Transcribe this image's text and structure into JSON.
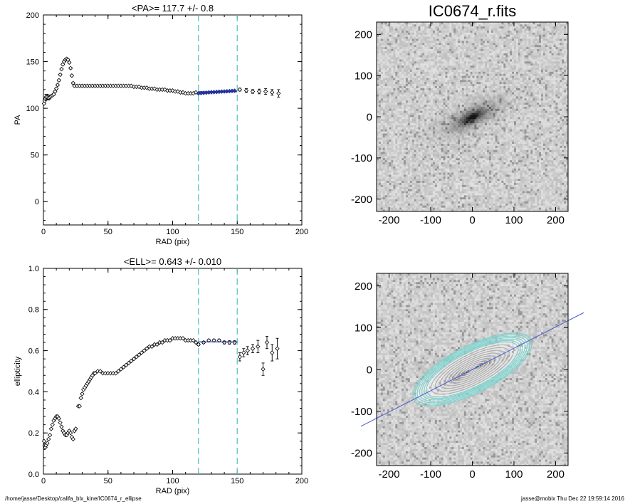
{
  "footer": {
    "path": "/home/jasse/Desktop/califa_blx_kine/IC0674_r_ellipse",
    "stamp": "jasse@mobix  Thu Dec 22 19:59:14 2016"
  },
  "chart_data": [
    {
      "id": "pa",
      "type": "scatter",
      "title": "<PA>= 117.7 +/-   0.8",
      "xlabel": "RAD (pix)",
      "ylabel": "PA",
      "xlim": [
        0,
        200
      ],
      "ylim": [
        -25,
        200
      ],
      "xticks": [
        0,
        50,
        100,
        150,
        200
      ],
      "yticks": [
        0,
        50,
        100,
        150,
        200
      ],
      "vlines": [
        120,
        150
      ],
      "fit_range": [
        120,
        150
      ],
      "fit_value": 117.7,
      "fit_error": 0.8,
      "grid": false,
      "series": [
        {
          "points": [
            [
              0.5,
              105
            ],
            [
              1,
              108
            ],
            [
              1.5,
              110
            ],
            [
              2,
              112
            ],
            [
              3,
              112
            ],
            [
              4,
              111
            ],
            [
              5,
              112
            ],
            [
              6,
              113
            ],
            [
              7,
              114
            ],
            [
              8,
              115
            ],
            [
              9,
              118
            ],
            [
              10,
              121
            ],
            [
              11,
              125
            ],
            [
              12,
              130
            ],
            [
              13,
              136
            ],
            [
              14,
              142
            ],
            [
              15,
              147
            ],
            [
              16,
              150
            ],
            [
              17,
              152
            ],
            [
              18,
              153
            ],
            [
              19,
              152
            ],
            [
              20,
              149
            ],
            [
              21,
              143
            ],
            [
              22,
              135
            ],
            [
              23,
              127
            ],
            [
              24,
              124
            ],
            [
              26,
              124
            ],
            [
              28,
              124
            ],
            [
              30,
              124
            ],
            [
              32,
              124
            ],
            [
              34,
              124
            ],
            [
              36,
              124
            ],
            [
              38,
              124
            ],
            [
              40,
              124
            ],
            [
              42,
              124
            ],
            [
              44,
              124
            ],
            [
              46,
              124
            ],
            [
              48,
              124
            ],
            [
              50,
              124
            ],
            [
              52,
              124
            ],
            [
              54,
              124
            ],
            [
              56,
              124
            ],
            [
              58,
              124
            ],
            [
              60,
              124
            ],
            [
              62,
              124
            ],
            [
              64,
              124
            ],
            [
              66,
              124
            ],
            [
              68,
              124
            ],
            [
              70,
              123
            ],
            [
              72,
              123
            ],
            [
              74,
              123
            ],
            [
              76,
              122
            ],
            [
              78,
              122
            ],
            [
              80,
              122
            ],
            [
              82,
              121
            ],
            [
              84,
              121
            ],
            [
              86,
              121
            ],
            [
              88,
              120
            ],
            [
              90,
              120
            ],
            [
              92,
              120
            ],
            [
              94,
              120
            ],
            [
              96,
              119
            ],
            [
              98,
              119
            ],
            [
              100,
              119
            ],
            [
              102,
              118
            ],
            [
              104,
              118
            ],
            [
              106,
              117
            ],
            [
              108,
              117
            ],
            [
              110,
              116
            ],
            [
              112,
              116
            ],
            [
              114,
              116
            ],
            [
              116,
              116
            ],
            [
              118,
              117
            ]
          ],
          "errors": [
            0,
            0,
            0,
            3,
            3,
            2,
            2,
            1,
            1,
            1,
            1,
            1,
            1,
            1,
            1,
            1,
            1,
            1,
            1,
            1,
            1,
            1,
            1,
            1,
            1,
            1,
            1,
            1,
            1,
            1,
            1,
            1,
            1,
            1,
            1,
            1,
            1,
            1,
            0.5,
            0.5,
            0.5,
            0.5,
            0.5,
            0.5,
            0.5,
            0.5,
            0.5,
            0.5,
            0.5,
            0.5,
            0.5,
            0.5,
            0.5,
            0.5,
            0.5,
            0.5,
            0.5,
            0.5,
            0.5,
            0.5,
            0.5,
            0.5,
            0.5,
            0.5,
            0.5,
            0.5,
            0.5,
            0.5,
            0.5,
            0.5,
            0.5,
            0.5,
            0.5
          ]
        },
        {
          "name": "fit",
          "points": [
            [
              120,
              116
            ],
            [
              122,
              116.3
            ],
            [
              124,
              116.5
            ],
            [
              126,
              116.7
            ],
            [
              128,
              117
            ],
            [
              130,
              117.2
            ],
            [
              132,
              117.3
            ],
            [
              134,
              117.5
            ],
            [
              136,
              117.7
            ],
            [
              138,
              117.9
            ],
            [
              140,
              118
            ],
            [
              142,
              118.2
            ],
            [
              144,
              118.4
            ],
            [
              146,
              118.6
            ],
            [
              148,
              118.8
            ]
          ],
          "errors": [
            0.5,
            0.5,
            0.5,
            0.5,
            0.5,
            0.5,
            0.5,
            0.5,
            0.5,
            0.5,
            0.5,
            0.5,
            0.5,
            0.5,
            0.5
          ]
        },
        {
          "points": [
            [
              152,
              120
            ],
            [
              157,
              119
            ],
            [
              162,
              118
            ],
            [
              167,
              118
            ],
            [
              172,
              118
            ],
            [
              177,
              117
            ],
            [
              182,
              116
            ]
          ],
          "errors": [
            1.5,
            2,
            2,
            2.5,
            3,
            3,
            4
          ]
        }
      ]
    },
    {
      "id": "image",
      "type": "heatmap",
      "title": "IC0674_r.fits",
      "xlim": [
        -230,
        230
      ],
      "ylim": [
        -230,
        230
      ],
      "xticks": [
        -200,
        -100,
        0,
        100,
        200
      ],
      "yticks": [
        -200,
        -100,
        0,
        100,
        200
      ],
      "galaxy": {
        "pa": 117.7,
        "ell": 0.643
      }
    },
    {
      "id": "ell",
      "type": "scatter",
      "title": "<ELL>= 0.643 +/-  0.010",
      "xlabel": "RAD (pix)",
      "ylabel": "ellipticity",
      "xlim": [
        0,
        200
      ],
      "ylim": [
        0,
        1
      ],
      "xticks": [
        0,
        50,
        100,
        150,
        200
      ],
      "yticks": [
        0.0,
        0.2,
        0.4,
        0.6,
        0.8,
        1.0
      ],
      "vlines": [
        120,
        150
      ],
      "fit_range": [
        120,
        150
      ],
      "fit_value": 0.643,
      "fit_error": 0.01,
      "grid": false,
      "series": [
        {
          "points": [
            [
              0.5,
              0.16
            ],
            [
              1,
              0.14
            ],
            [
              1.5,
              0.13
            ],
            [
              2,
              0.14
            ],
            [
              3,
              0.15
            ],
            [
              4,
              0.17
            ],
            [
              5,
              0.19
            ],
            [
              6,
              0.22
            ],
            [
              7,
              0.24
            ],
            [
              8,
              0.26
            ],
            [
              9,
              0.27
            ],
            [
              10,
              0.28
            ],
            [
              11,
              0.28
            ],
            [
              12,
              0.27
            ],
            [
              13,
              0.25
            ],
            [
              14,
              0.23
            ],
            [
              15,
              0.21
            ],
            [
              16,
              0.2
            ],
            [
              17,
              0.19
            ],
            [
              18,
              0.19
            ],
            [
              19,
              0.2
            ],
            [
              20,
              0.21
            ],
            [
              21,
              0.2
            ],
            [
              22,
              0.18
            ],
            [
              23,
              0.17
            ],
            [
              24,
              0.21
            ],
            [
              25,
              0.22
            ],
            [
              27,
              0.33
            ],
            [
              28,
              0.33
            ],
            [
              29,
              0.37
            ],
            [
              30,
              0.39
            ],
            [
              31,
              0.41
            ],
            [
              32,
              0.42
            ],
            [
              33,
              0.43
            ],
            [
              34,
              0.44
            ],
            [
              35,
              0.45
            ],
            [
              36,
              0.46
            ],
            [
              37,
              0.47
            ],
            [
              38,
              0.48
            ],
            [
              39,
              0.49
            ],
            [
              40,
              0.49
            ],
            [
              42,
              0.5
            ],
            [
              44,
              0.5
            ],
            [
              46,
              0.49
            ],
            [
              48,
              0.49
            ],
            [
              50,
              0.49
            ],
            [
              52,
              0.49
            ],
            [
              54,
              0.49
            ],
            [
              56,
              0.49
            ],
            [
              58,
              0.5
            ],
            [
              60,
              0.51
            ],
            [
              62,
              0.52
            ],
            [
              64,
              0.53
            ],
            [
              66,
              0.54
            ],
            [
              68,
              0.55
            ],
            [
              70,
              0.56
            ],
            [
              72,
              0.57
            ],
            [
              74,
              0.58
            ],
            [
              76,
              0.59
            ],
            [
              78,
              0.6
            ],
            [
              80,
              0.61
            ],
            [
              82,
              0.62
            ],
            [
              84,
              0.62
            ],
            [
              86,
              0.63
            ],
            [
              88,
              0.63
            ],
            [
              90,
              0.64
            ],
            [
              92,
              0.64
            ],
            [
              94,
              0.65
            ],
            [
              96,
              0.65
            ],
            [
              98,
              0.65
            ],
            [
              100,
              0.66
            ],
            [
              102,
              0.66
            ],
            [
              104,
              0.66
            ],
            [
              106,
              0.66
            ],
            [
              108,
              0.66
            ],
            [
              110,
              0.65
            ],
            [
              112,
              0.65
            ],
            [
              114,
              0.65
            ],
            [
              116,
              0.65
            ],
            [
              118,
              0.64
            ]
          ],
          "errors": []
        },
        {
          "points": [
            [
              120,
              0.63
            ],
            [
              124,
              0.64
            ],
            [
              128,
              0.65
            ],
            [
              132,
              0.65
            ],
            [
              136,
              0.65
            ],
            [
              140,
              0.64
            ],
            [
              144,
              0.64
            ],
            [
              148,
              0.64
            ]
          ],
          "errors": [
            0.005,
            0.005,
            0.005,
            0.006,
            0.006,
            0.007,
            0.008,
            0.008
          ]
        },
        {
          "points": [
            [
              152,
              0.57
            ],
            [
              155,
              0.59
            ],
            [
              158,
              0.6
            ],
            [
              162,
              0.61
            ],
            [
              166,
              0.62
            ],
            [
              170,
              0.51
            ],
            [
              173,
              0.64
            ],
            [
              177,
              0.59
            ],
            [
              181,
              0.61
            ]
          ],
          "errors": [
            0.02,
            0.02,
            0.02,
            0.02,
            0.03,
            0.03,
            0.03,
            0.04,
            0.05
          ]
        }
      ]
    },
    {
      "id": "contours",
      "type": "heatmap",
      "xlim": [
        -230,
        230
      ],
      "ylim": [
        -230,
        230
      ],
      "xticks": [
        -200,
        -100,
        0,
        100,
        200
      ],
      "yticks": [
        -200,
        -100,
        0,
        100,
        200
      ],
      "isophote_semi_major_axes": [
        8,
        14,
        20,
        26,
        32,
        38,
        44,
        50,
        56,
        62,
        68,
        74,
        80,
        86,
        92,
        98,
        104,
        110,
        116,
        122,
        128,
        134,
        140,
        146,
        152,
        158
      ],
      "galaxy": {
        "pa": 117.7,
        "ell": 0.643
      }
    }
  ]
}
